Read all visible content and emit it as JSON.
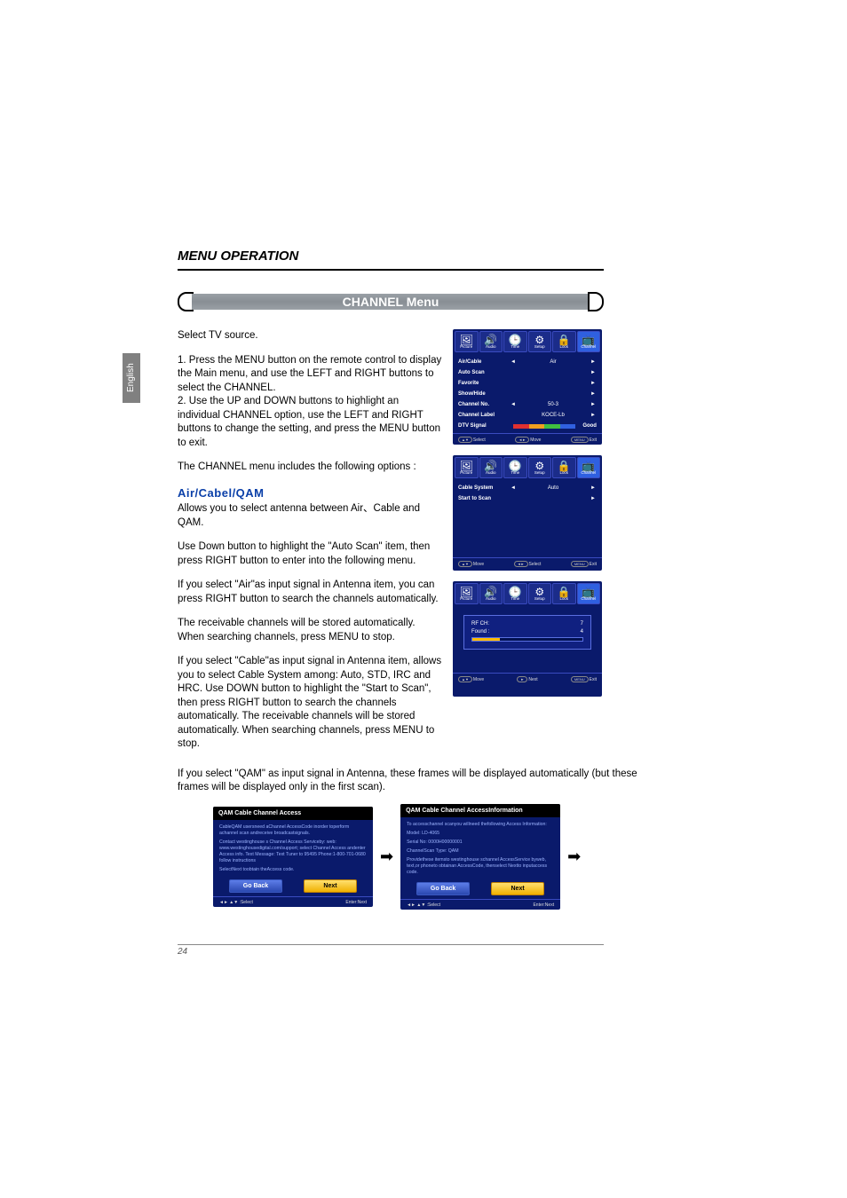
{
  "sideTab": "English",
  "sectionTitle": "MENU OPERATION",
  "bannerTitle": "CHANNEL Menu",
  "pageNumber": "24",
  "intro": "Select TV source.",
  "steps1": "1. Press the MENU button on the remote control to display the Main menu, and use the LEFT and RIGHT buttons to select the CHANNEL.",
  "steps2": "2. Use the UP and DOWN buttons to highlight an individual CHANNEL option, use the LEFT and RIGHT buttons to change the setting, and press the MENU button to exit.",
  "optionsLine": "The CHANNEL menu includes the following options :",
  "subhead": "Air/Cabel/QAM",
  "subheadDesc": "Allows you to select antenna between Air、Cable and QAM.",
  "para3": "Use Down button to highlight the \"Auto Scan\" item, then press RIGHT button to enter into the following menu.",
  "para4": "If you select \"Air\"as input signal in Antenna item, you can press RIGHT button to search the channels automatically.",
  "para5": "The receivable channels will be stored automatically. When searching channels, press MENU to stop.",
  "para6": "If you select \"Cable\"as input signal in Antenna item, allows you to select Cable System among: Auto, STD, IRC and HRC. Use DOWN button to highlight the \"Start to Scan\", then press RIGHT button to search the channels automatically. The receivable channels will be stored automatically. When searching channels, press MENU to stop.",
  "qamPara": "If you select \"QAM\" as input signal in Antenna, these frames will be displayed automatically (but these frames will be displayed only in the first scan).",
  "tabs": [
    {
      "label": "Picture",
      "icon": "🖼",
      "active": false
    },
    {
      "label": "Audio",
      "icon": "🔊",
      "active": false
    },
    {
      "label": "Time",
      "icon": "🕒",
      "active": false
    },
    {
      "label": "Setup",
      "icon": "⚙",
      "active": false
    },
    {
      "label": "Lock",
      "icon": "🔒",
      "active": false
    },
    {
      "label": "Channel",
      "icon": "📺",
      "active": true
    }
  ],
  "osd1": {
    "rows": [
      {
        "label": "Air/Cable",
        "left": "◄",
        "mid": "Air",
        "right": "►"
      },
      {
        "label": "Auto Scan",
        "left": "",
        "mid": "",
        "right": "►"
      },
      {
        "label": "Favorite",
        "left": "",
        "mid": "",
        "right": "►"
      },
      {
        "label": "Show/Hide",
        "left": "",
        "mid": "",
        "right": "►"
      },
      {
        "label": "Channel No.",
        "left": "◄",
        "mid": "50-3",
        "right": "►"
      },
      {
        "label": "Channel Label",
        "left": "",
        "mid": "KOCE-Lb",
        "right": "►"
      }
    ],
    "signal": {
      "label": "DTV Signal",
      "colors": [
        "#e03030",
        "#f0a020",
        "#40c040",
        "#3060e0"
      ],
      "text": "Good"
    },
    "footer": {
      "l": "Select",
      "m": "Move",
      "r": "Exit",
      "lp": "▲▼",
      "mp": "◄►",
      "rp": "MENU"
    }
  },
  "osd2": {
    "rows": [
      {
        "label": "Cable System",
        "left": "◄",
        "mid": "Auto",
        "right": "►"
      },
      {
        "label": "Start to Scan",
        "left": "",
        "mid": "",
        "right": "►"
      }
    ],
    "footer": {
      "l": "Move",
      "m": "Select",
      "r": "Exit",
      "lp": "▲▼",
      "mp": "◄►",
      "rp": "MENU"
    }
  },
  "osd3": {
    "scan": {
      "rfLabel": "RF CH:",
      "rfVal": "7",
      "foundLabel": "Found :",
      "foundVal": "4",
      "progress": 25
    },
    "footer": {
      "l": "Move",
      "m": "Next",
      "r": "Exit",
      "lp": "▲▼",
      "mp": "►",
      "rp": "MENU"
    }
  },
  "qam1": {
    "title": "QAM Cable Channel Access",
    "lines": [
      "CableQAM usersneed aChannel AccessCode inorder toperform achannel scan andreceive broadcastsignals.",
      "Contact westinghouse s Channel Access Serviceby: web: www.westinghousedigital.com/support; select Channel Access andenter Access info. Text Message: Text Tuner to 95495 Phone:1-800-701-0680 follow instructions",
      "SelectNext toobtain theAccess code."
    ],
    "btnBack": "Go Back",
    "btnNext": "Next",
    "footer": {
      "l": "Select",
      "r": "Enter:Next",
      "lp": "◄► ▲▼"
    }
  },
  "qam2": {
    "title": "QAM Cable Channel AccessInformation",
    "lines": [
      "To accesschannel scanyou willneed thefollowing Access Information:",
      "Model:             LD-4065",
      "Serial No:         0000H00000001",
      "ChannelScan Type: QAM",
      "Providethese itemsto westinghouse schannel AccessService byweb, text,or phoneto obtainan AccessCode, thenselect Nextto inputaccess code."
    ],
    "btnBack": "Go Back",
    "btnNext": "Next",
    "footer": {
      "l": "Select",
      "r": "Enter:Next",
      "lp": "◄► ▲▼"
    }
  }
}
